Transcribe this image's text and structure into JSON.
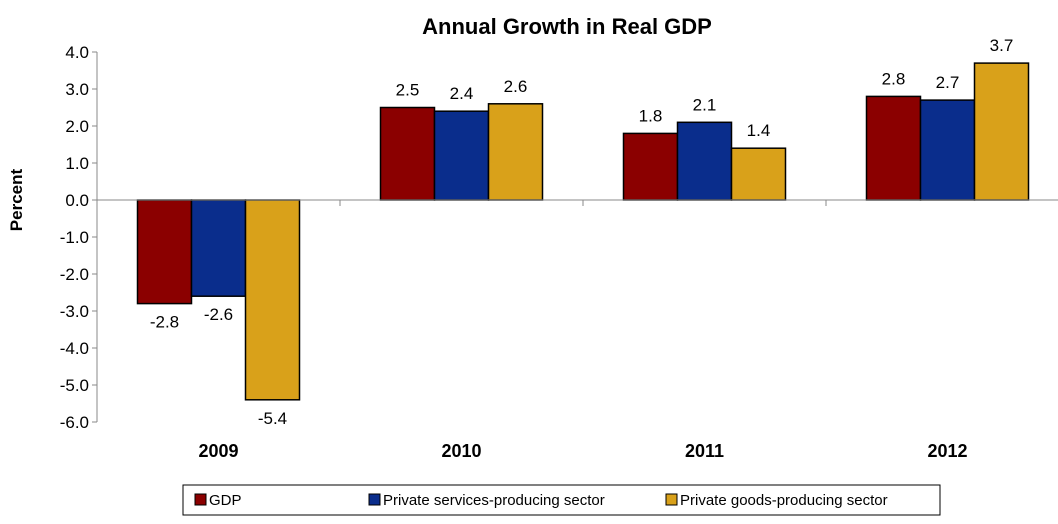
{
  "chart_data": {
    "type": "bar",
    "title": "Annual Growth in Real GDP",
    "ylabel": "Percent",
    "xlabel": "",
    "ylim": [
      -6.0,
      4.0
    ],
    "yticks": [
      "4.0",
      "3.0",
      "2.0",
      "1.0",
      "0.0",
      "-1.0",
      "-2.0",
      "-3.0",
      "-4.0",
      "-5.0",
      "-6.0"
    ],
    "categories": [
      "2009",
      "2010",
      "2011",
      "2012"
    ],
    "series": [
      {
        "name": "GDP",
        "color": "#8b0000",
        "values": [
          -2.8,
          2.5,
          1.8,
          2.8
        ],
        "labels": [
          "-2.8",
          "2.5",
          "1.8",
          "2.8"
        ]
      },
      {
        "name": "Private services-producing sector",
        "color": "#0a2d8c",
        "values": [
          -2.6,
          2.4,
          2.1,
          2.7
        ],
        "labels": [
          "-2.6",
          "2.4",
          "2.1",
          "2.7"
        ]
      },
      {
        "name": "Private goods-producing sector",
        "color": "#d9a11a",
        "values": [
          -5.4,
          2.6,
          1.4,
          3.7
        ],
        "labels": [
          "-5.4",
          "2.6",
          "1.4",
          "3.7"
        ]
      }
    ],
    "legend": "bottom",
    "grid": false
  }
}
